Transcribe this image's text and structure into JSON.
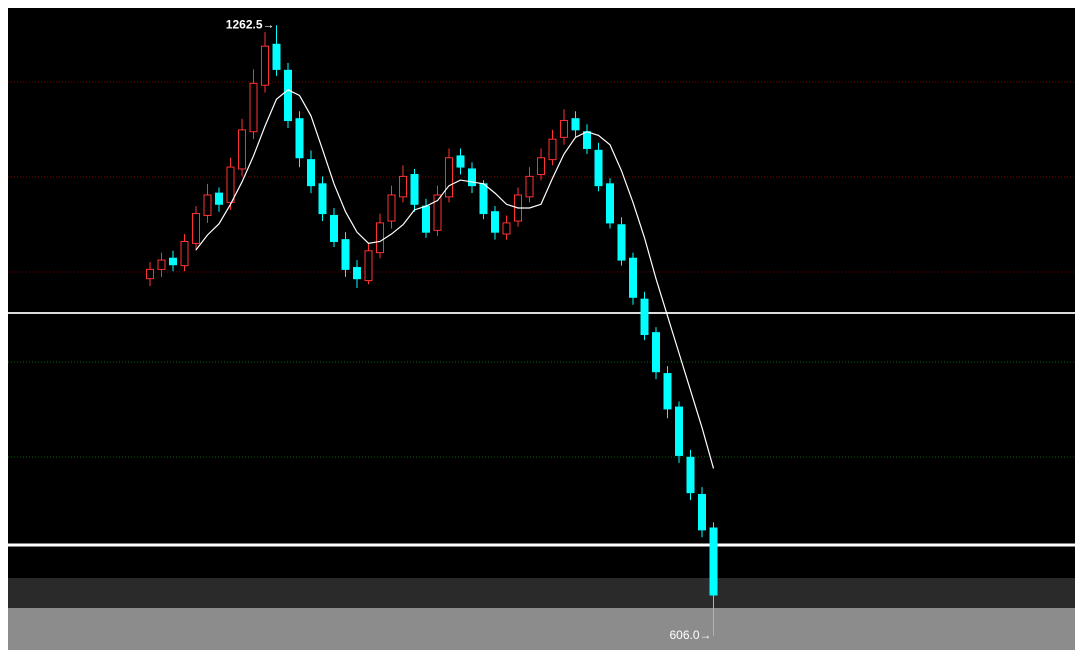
{
  "chart_data": {
    "type": "candlestick",
    "open": [
      990,
      1000,
      1012,
      1004,
      1028,
      1058,
      1082,
      1072,
      1108,
      1148,
      1198,
      1242,
      1214,
      1162,
      1118,
      1092,
      1058,
      1032,
      1002,
      988,
      1018,
      1052,
      1078,
      1102,
      1068,
      1042,
      1078,
      1122,
      1108,
      1092,
      1062,
      1038,
      1052,
      1078,
      1102,
      1118,
      1142,
      1162,
      1148,
      1128,
      1092,
      1048,
      1012,
      968,
      932,
      888,
      852,
      798,
      758,
      722
    ],
    "high": [
      1008,
      1018,
      1020,
      1038,
      1068,
      1092,
      1088,
      1120,
      1162,
      1215,
      1255,
      1262.5,
      1222,
      1170,
      1128,
      1100,
      1066,
      1040,
      1010,
      1028,
      1060,
      1090,
      1112,
      1108,
      1076,
      1090,
      1130,
      1130,
      1115,
      1096,
      1068,
      1058,
      1088,
      1110,
      1130,
      1150,
      1172,
      1170,
      1156,
      1136,
      1098,
      1056,
      1018,
      976,
      938,
      896,
      858,
      806,
      766,
      728
    ],
    "low": [
      982,
      992,
      998,
      998,
      1020,
      1050,
      1062,
      1064,
      1100,
      1140,
      1190,
      1208,
      1152,
      1110,
      1082,
      1052,
      1024,
      992,
      980,
      984,
      1012,
      1044,
      1072,
      1062,
      1034,
      1036,
      1072,
      1102,
      1082,
      1054,
      1032,
      1032,
      1046,
      1072,
      1096,
      1112,
      1134,
      1142,
      1124,
      1084,
      1044,
      1004,
      962,
      924,
      882,
      840,
      792,
      752,
      712,
      606
    ],
    "close": [
      1000,
      1010,
      1005,
      1030,
      1060,
      1080,
      1070,
      1110,
      1150,
      1200,
      1240,
      1215,
      1160,
      1120,
      1090,
      1060,
      1030,
      1000,
      990,
      1020,
      1050,
      1080,
      1100,
      1070,
      1040,
      1080,
      1120,
      1110,
      1090,
      1060,
      1040,
      1050,
      1080,
      1100,
      1120,
      1140,
      1160,
      1150,
      1130,
      1090,
      1050,
      1010,
      970,
      930,
      890,
      850,
      800,
      760,
      720,
      650
    ],
    "up_color": "#ff3232",
    "down_color": "#00ffff",
    "ma": {
      "color": "#ffffff",
      "values": [
        null,
        null,
        null,
        null,
        1021,
        1037,
        1049,
        1070,
        1094,
        1122,
        1154,
        1183,
        1193,
        1187,
        1165,
        1129,
        1092,
        1062,
        1040,
        1028,
        1030,
        1038,
        1048,
        1064,
        1068,
        1074,
        1090,
        1096,
        1094,
        1092,
        1082,
        1070,
        1066,
        1066,
        1070,
        1098,
        1124,
        1142,
        1148,
        1144,
        1134,
        1106,
        1072,
        1034,
        990,
        950,
        910,
        870,
        830,
        786
      ]
    },
    "ylim": [
      593,
      1281
    ],
    "annotations": [
      {
        "index": 11,
        "value": 1262.5,
        "label": "1262.5→"
      },
      {
        "index": 49,
        "value": 606.0,
        "label": "606.0→"
      }
    ]
  }
}
